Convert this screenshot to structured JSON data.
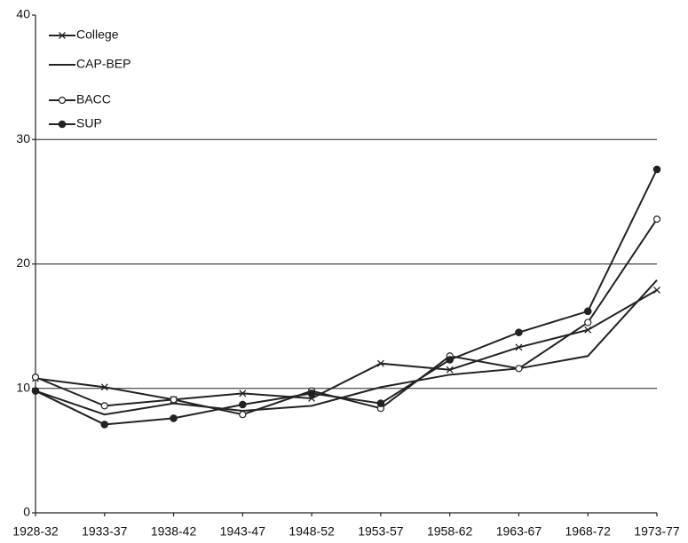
{
  "chart_data": {
    "type": "line",
    "categories": [
      "1928-32",
      "1933-37",
      "1938-42",
      "1943-47",
      "1948-52",
      "1953-57",
      "1958-62",
      "1963-67",
      "1968-72",
      "1973-77"
    ],
    "series": [
      {
        "name": "College",
        "color": "#222222",
        "marker": "x",
        "values": [
          10.8,
          10.1,
          9.1,
          9.6,
          9.2,
          12.0,
          11.5,
          13.3,
          14.7,
          17.9
        ]
      },
      {
        "name": "CAP-BEP",
        "color": "#222222",
        "marker": "none",
        "values": [
          9.8,
          7.9,
          8.8,
          8.2,
          8.6,
          10.1,
          11.1,
          11.6,
          12.6,
          18.7
        ]
      },
      {
        "name": "BACC",
        "color": "#222222",
        "marker": "open-circle",
        "values": [
          10.9,
          8.6,
          9.1,
          7.9,
          9.8,
          8.4,
          12.6,
          11.6,
          15.3,
          23.6
        ]
      },
      {
        "name": "SUP",
        "color": "#222222",
        "marker": "filled-circle",
        "values": [
          9.8,
          7.1,
          7.6,
          8.7,
          9.6,
          8.8,
          12.3,
          14.5,
          16.2,
          27.6
        ]
      }
    ],
    "ylim": [
      0,
      40
    ],
    "yticks": [
      0,
      10,
      20,
      30,
      40
    ],
    "grid": true,
    "legend": "top-left"
  }
}
